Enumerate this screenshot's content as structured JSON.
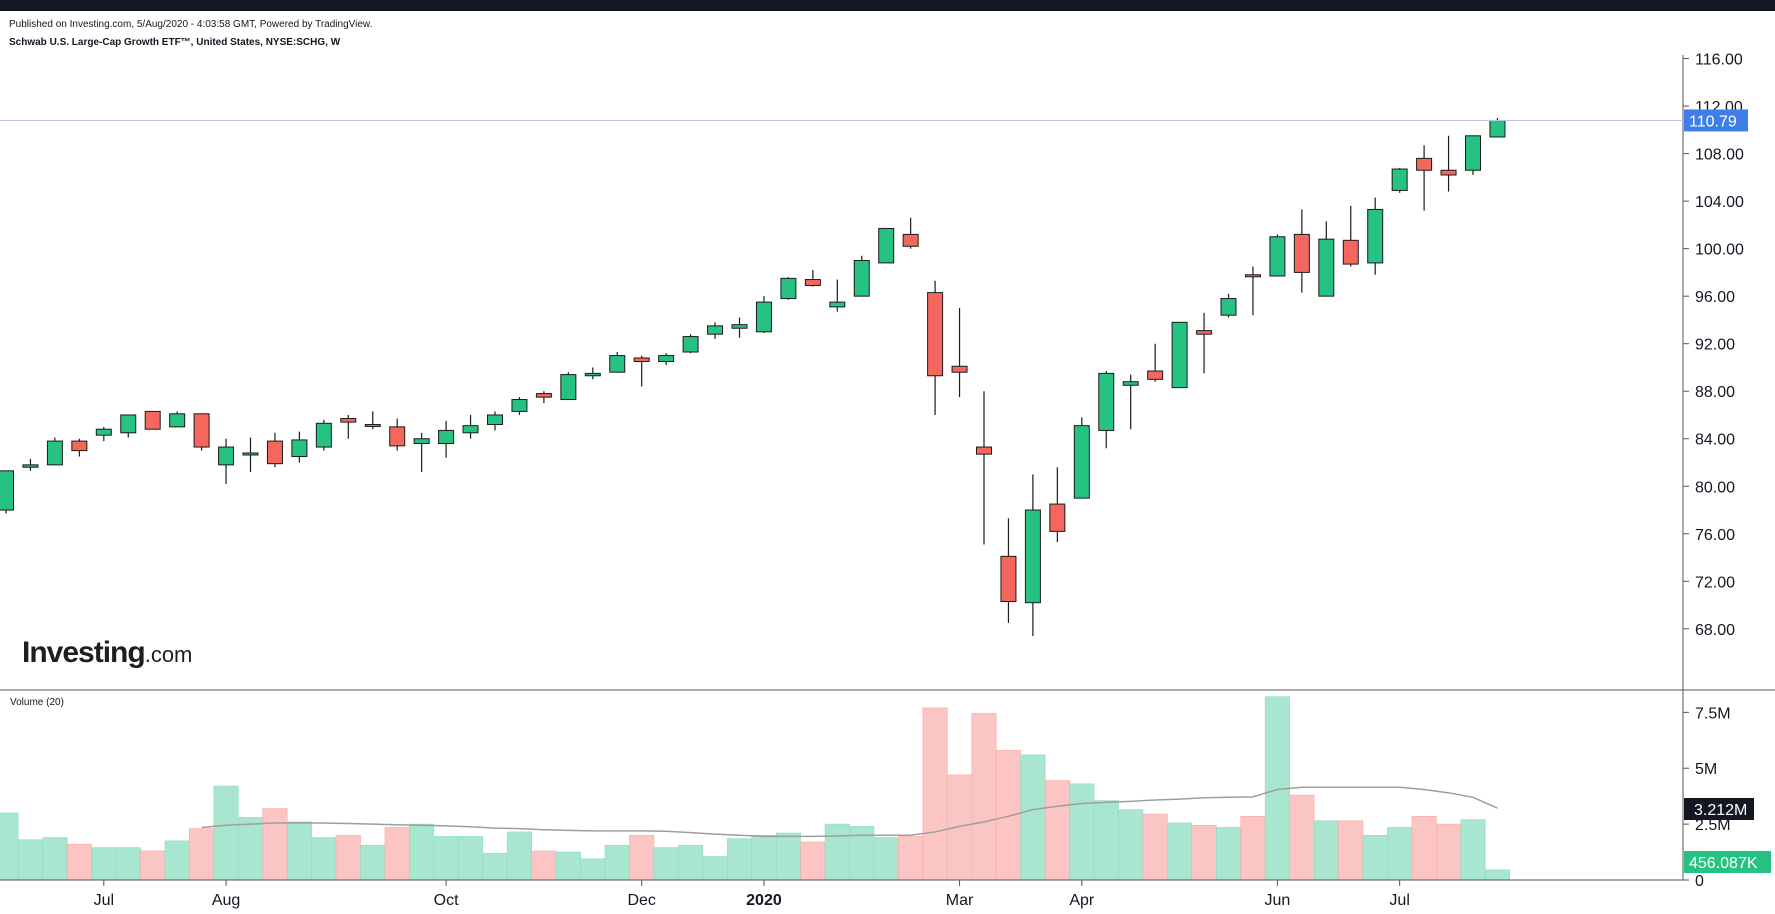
{
  "header": {
    "published": "Published on Investing.com, 5/Aug/2020 - 4:03:58 GMT, Powered by TradingView.",
    "symbol_line": "Schwab U.S. Large-Cap Growth ETF™, United States, NYSE:SCHG, W"
  },
  "logo": {
    "main": "Investing",
    "suffix": ".com"
  },
  "volume_label": "Volume (20)",
  "colors": {
    "up": "#26c281",
    "down": "#f4665e",
    "up_vol": "#a9e6cf",
    "down_vol": "#fbc5c4",
    "last_price_bg": "#3f7ee8",
    "ma": "#9e9e9e"
  },
  "chart_data": {
    "type": "candlestick",
    "interval": "W",
    "price_axis": {
      "ticks": [
        "116.00",
        "112.00",
        "108.00",
        "104.00",
        "100.00",
        "96.00",
        "92.00",
        "88.00",
        "84.00",
        "80.00",
        "76.00",
        "72.00",
        "68.00"
      ],
      "range": [
        62.85,
        116.3
      ]
    },
    "volume_axis": {
      "ticks": [
        "7.5M",
        "5M",
        "2.5M",
        "0"
      ],
      "range": [
        0,
        8500000
      ]
    },
    "x_labels": [
      {
        "label": "Jul",
        "index": 4,
        "bold": false
      },
      {
        "label": "Aug",
        "index": 9,
        "bold": false
      },
      {
        "label": "Oct",
        "index": 18,
        "bold": false
      },
      {
        "label": "Dec",
        "index": 26,
        "bold": false
      },
      {
        "label": "2020",
        "index": 31,
        "bold": true
      },
      {
        "label": "Mar",
        "index": 39,
        "bold": false
      },
      {
        "label": "Apr",
        "index": 44,
        "bold": false
      },
      {
        "label": "Jun",
        "index": 52,
        "bold": false
      },
      {
        "label": "Jul",
        "index": 57,
        "bold": false
      }
    ],
    "last_price": "110.79",
    "last_price_value": 110.79,
    "volume_ma_value": "3.212M",
    "last_volume_value": "456.087K",
    "candles": [
      {
        "o": 78.0,
        "h": 81.3,
        "l": 77.7,
        "c": 81.3,
        "v": 3.0
      },
      {
        "o": 81.6,
        "h": 82.3,
        "l": 81.3,
        "c": 81.8,
        "v": 1.8
      },
      {
        "o": 81.8,
        "h": 84.1,
        "l": 81.8,
        "c": 83.8,
        "v": 1.9
      },
      {
        "o": 83.8,
        "h": 84.0,
        "l": 82.5,
        "c": 83.0,
        "v": 1.6
      },
      {
        "o": 84.3,
        "h": 85.0,
        "l": 83.8,
        "c": 84.8,
        "v": 1.45
      },
      {
        "o": 84.5,
        "h": 86.0,
        "l": 84.1,
        "c": 86.0,
        "v": 1.45
      },
      {
        "o": 86.3,
        "h": 86.3,
        "l": 84.8,
        "c": 84.8,
        "v": 1.3
      },
      {
        "o": 85.0,
        "h": 86.3,
        "l": 85.0,
        "c": 86.1,
        "v": 1.75
      },
      {
        "o": 86.1,
        "h": 86.1,
        "l": 83.0,
        "c": 83.3,
        "v": 2.3
      },
      {
        "o": 81.8,
        "h": 84.0,
        "l": 80.2,
        "c": 83.3,
        "v": 4.2
      },
      {
        "o": 82.8,
        "h": 84.1,
        "l": 81.2,
        "c": 82.8,
        "v": 2.8
      },
      {
        "o": 83.8,
        "h": 84.5,
        "l": 81.6,
        "c": 81.9,
        "v": 3.2
      },
      {
        "o": 82.5,
        "h": 84.6,
        "l": 82.0,
        "c": 83.9,
        "v": 2.6
      },
      {
        "o": 83.3,
        "h": 85.6,
        "l": 83.0,
        "c": 85.3,
        "v": 1.9
      },
      {
        "o": 85.7,
        "h": 86.0,
        "l": 84.0,
        "c": 85.4,
        "v": 2.0
      },
      {
        "o": 85.2,
        "h": 86.3,
        "l": 84.8,
        "c": 85.2,
        "v": 1.55
      },
      {
        "o": 85.0,
        "h": 85.7,
        "l": 83.0,
        "c": 83.4,
        "v": 2.35
      },
      {
        "o": 83.6,
        "h": 84.5,
        "l": 81.2,
        "c": 84.0,
        "v": 2.5
      },
      {
        "o": 83.6,
        "h": 85.5,
        "l": 82.4,
        "c": 84.7,
        "v": 1.95
      },
      {
        "o": 84.5,
        "h": 86.0,
        "l": 84.0,
        "c": 85.1,
        "v": 1.95
      },
      {
        "o": 85.2,
        "h": 86.3,
        "l": 84.7,
        "c": 86.0,
        "v": 1.2
      },
      {
        "o": 86.3,
        "h": 87.5,
        "l": 86.0,
        "c": 87.3,
        "v": 2.15
      },
      {
        "o": 87.8,
        "h": 88.0,
        "l": 87.0,
        "c": 87.5,
        "v": 1.3
      },
      {
        "o": 87.3,
        "h": 89.6,
        "l": 87.3,
        "c": 89.4,
        "v": 1.25
      },
      {
        "o": 89.3,
        "h": 90.0,
        "l": 89.0,
        "c": 89.5,
        "v": 0.95
      },
      {
        "o": 89.6,
        "h": 91.3,
        "l": 89.6,
        "c": 91.0,
        "v": 1.55
      },
      {
        "o": 90.8,
        "h": 91.0,
        "l": 88.4,
        "c": 90.5,
        "v": 2.0
      },
      {
        "o": 90.5,
        "h": 91.2,
        "l": 90.2,
        "c": 91.0,
        "v": 1.45
      },
      {
        "o": 91.3,
        "h": 92.8,
        "l": 91.2,
        "c": 92.6,
        "v": 1.55
      },
      {
        "o": 92.8,
        "h": 93.8,
        "l": 92.4,
        "c": 93.5,
        "v": 1.05
      },
      {
        "o": 93.3,
        "h": 94.2,
        "l": 92.5,
        "c": 93.6,
        "v": 1.85
      },
      {
        "o": 93.0,
        "h": 96.0,
        "l": 92.9,
        "c": 95.5,
        "v": 2.0
      },
      {
        "o": 95.8,
        "h": 97.6,
        "l": 95.7,
        "c": 97.5,
        "v": 2.1
      },
      {
        "o": 97.4,
        "h": 98.2,
        "l": 96.8,
        "c": 96.9,
        "v": 1.7
      },
      {
        "o": 95.1,
        "h": 97.4,
        "l": 94.7,
        "c": 95.5,
        "v": 2.5
      },
      {
        "o": 96.0,
        "h": 99.4,
        "l": 96.0,
        "c": 99.0,
        "v": 2.4
      },
      {
        "o": 98.8,
        "h": 101.7,
        "l": 98.8,
        "c": 101.7,
        "v": 1.9
      },
      {
        "o": 101.2,
        "h": 102.6,
        "l": 100.0,
        "c": 100.2,
        "v": 1.95
      },
      {
        "o": 96.3,
        "h": 97.3,
        "l": 86.0,
        "c": 89.3,
        "v": 7.7
      },
      {
        "o": 90.1,
        "h": 95.0,
        "l": 87.5,
        "c": 89.6,
        "v": 4.7
      },
      {
        "o": 83.3,
        "h": 88.0,
        "l": 75.1,
        "c": 82.7,
        "v": 7.45
      },
      {
        "o": 74.1,
        "h": 77.3,
        "l": 68.5,
        "c": 70.3,
        "v": 5.8
      },
      {
        "o": 70.2,
        "h": 81.0,
        "l": 67.4,
        "c": 78.0,
        "v": 5.6
      },
      {
        "o": 78.5,
        "h": 81.6,
        "l": 75.3,
        "c": 76.2,
        "v": 4.45
      },
      {
        "o": 79.0,
        "h": 85.8,
        "l": 79.0,
        "c": 85.1,
        "v": 4.3
      },
      {
        "o": 84.7,
        "h": 89.7,
        "l": 83.2,
        "c": 89.5,
        "v": 3.55
      },
      {
        "o": 88.5,
        "h": 89.4,
        "l": 84.8,
        "c": 88.8,
        "v": 3.15
      },
      {
        "o": 89.7,
        "h": 92.0,
        "l": 88.8,
        "c": 89.0,
        "v": 2.95
      },
      {
        "o": 88.3,
        "h": 93.8,
        "l": 88.3,
        "c": 93.8,
        "v": 2.55
      },
      {
        "o": 93.1,
        "h": 94.6,
        "l": 89.5,
        "c": 92.8,
        "v": 2.45
      },
      {
        "o": 94.4,
        "h": 96.2,
        "l": 94.2,
        "c": 95.8,
        "v": 2.35
      },
      {
        "o": 97.8,
        "h": 98.5,
        "l": 94.4,
        "c": 97.7,
        "v": 2.85
      },
      {
        "o": 97.7,
        "h": 101.2,
        "l": 97.7,
        "c": 101.0,
        "v": 8.2
      },
      {
        "o": 101.2,
        "h": 103.3,
        "l": 96.3,
        "c": 98.0,
        "v": 3.8
      },
      {
        "o": 96.0,
        "h": 102.3,
        "l": 96.0,
        "c": 100.8,
        "v": 2.65
      },
      {
        "o": 100.7,
        "h": 103.6,
        "l": 98.5,
        "c": 98.7,
        "v": 2.65
      },
      {
        "o": 98.8,
        "h": 104.3,
        "l": 97.8,
        "c": 103.3,
        "v": 2.0
      },
      {
        "o": 104.9,
        "h": 106.8,
        "l": 104.7,
        "c": 106.7,
        "v": 2.35
      },
      {
        "o": 107.6,
        "h": 108.7,
        "l": 103.2,
        "c": 106.6,
        "v": 2.85
      },
      {
        "o": 106.6,
        "h": 109.5,
        "l": 104.8,
        "c": 106.2,
        "v": 2.5
      },
      {
        "o": 106.6,
        "h": 109.5,
        "l": 106.2,
        "c": 109.5,
        "v": 2.7
      },
      {
        "o": 109.4,
        "h": 111.0,
        "l": 109.4,
        "c": 110.79,
        "v": 0.456
      }
    ],
    "volume_ma": [
      null,
      null,
      null,
      null,
      null,
      null,
      null,
      null,
      2.35,
      2.45,
      2.5,
      2.55,
      2.55,
      2.55,
      2.53,
      2.5,
      2.47,
      2.45,
      2.42,
      2.38,
      2.32,
      2.3,
      2.25,
      2.22,
      2.2,
      2.2,
      2.2,
      2.18,
      2.12,
      2.05,
      2.0,
      1.95,
      1.95,
      1.95,
      1.97,
      2.0,
      2.0,
      2.0,
      2.15,
      2.4,
      2.6,
      2.85,
      3.15,
      3.3,
      3.42,
      3.48,
      3.52,
      3.58,
      3.62,
      3.68,
      3.7,
      3.72,
      4.05,
      4.15,
      4.15,
      4.15,
      4.15,
      4.15,
      4.05,
      3.9,
      3.7,
      3.212
    ]
  }
}
